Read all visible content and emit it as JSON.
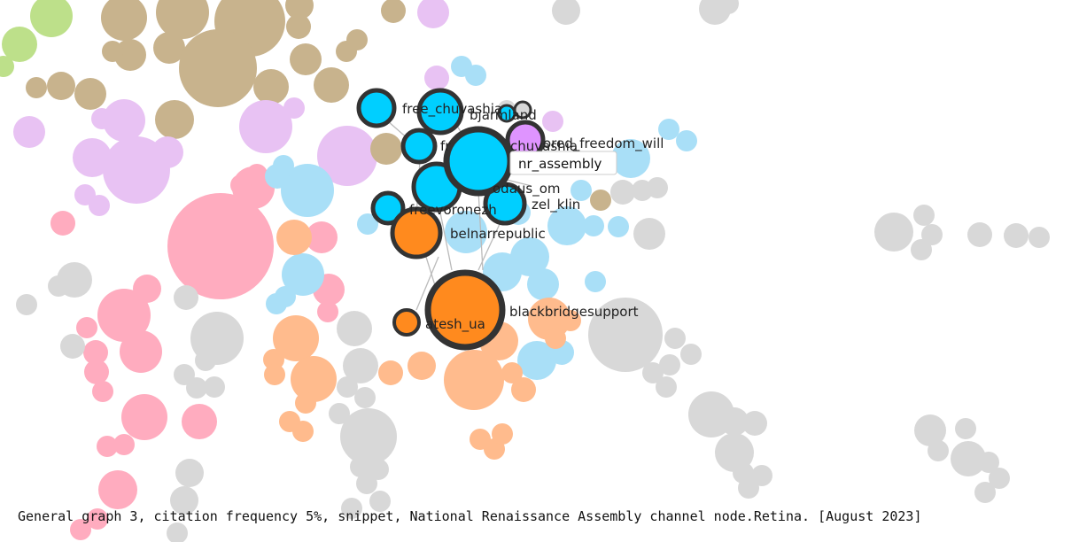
{
  "caption": "General graph 3, citation frequency 5%, snippet, National Renaissance Assembly channel node.Retina. [August 2023]",
  "tooltip": "nr_assembly",
  "colors": {
    "green": "#bde08a",
    "tan": "#c8b38d",
    "lilac": "#e8c2f3",
    "pink": "#ffacbf",
    "lightblue": "#a9dff7",
    "cyan": "#00cfff",
    "orange": "#ff8a1e",
    "peach": "#ffbb8d",
    "gray": "#d8d8d8",
    "purple": "#df94ff",
    "highlight_stroke": "#333333",
    "edge": "#bbbbbb"
  },
  "nodes": [
    {
      "id": "nr_assembly",
      "label": "nr_assembly",
      "group": "cyan"
    },
    {
      "id": "free_chuvashia",
      "label": "free_chuvashia",
      "group": "cyan"
    },
    {
      "id": "freevoronezh",
      "label": "freevoronezh",
      "group": "cyan"
    },
    {
      "id": "belnarrepublic",
      "label": "belnarrepublic",
      "group": "cyan"
    },
    {
      "id": "blackbridgesupport",
      "label": "blackbridgesupport",
      "group": "orange"
    },
    {
      "id": "atesh_ua",
      "label": "atesh_ua",
      "group": "orange"
    },
    {
      "id": "zel_klin",
      "label": "zel_klin",
      "group": "cyan"
    },
    {
      "id": "odaus_om",
      "label": "odaus_om",
      "group": "cyan"
    },
    {
      "id": "chuvashia",
      "label": "chuvashia",
      "group": "purple"
    },
    {
      "id": "ored_freedom_will",
      "label": "ored_freedom_will",
      "group": "cyan"
    },
    {
      "id": "bjarmland",
      "label": "bjarmland",
      "group": "gray"
    },
    {
      "id": "fr",
      "label": "fr",
      "group": "cyan"
    }
  ]
}
